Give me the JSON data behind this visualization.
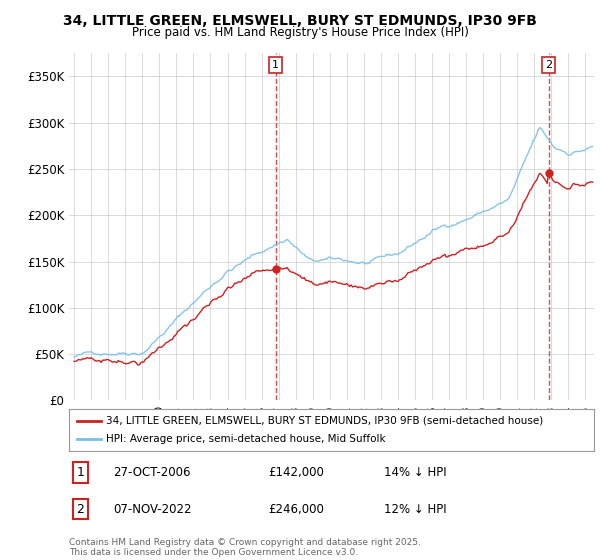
{
  "title1": "34, LITTLE GREEN, ELMSWELL, BURY ST EDMUNDS, IP30 9FB",
  "title2": "Price paid vs. HM Land Registry's House Price Index (HPI)",
  "ylabel_ticks": [
    "£0",
    "£50K",
    "£100K",
    "£150K",
    "£200K",
    "£250K",
    "£300K",
    "£350K"
  ],
  "ytick_vals": [
    0,
    50000,
    100000,
    150000,
    200000,
    250000,
    300000,
    350000
  ],
  "ylim": [
    0,
    375000
  ],
  "hpi_color": "#7bbfe8",
  "price_color": "#cc2222",
  "vline_color": "#cc2222",
  "marker1_year": 2006.82,
  "marker1_price": 142000,
  "marker2_year": 2022.85,
  "marker2_price": 246000,
  "legend_line1": "34, LITTLE GREEN, ELMSWELL, BURY ST EDMUNDS, IP30 9FB (semi-detached house)",
  "legend_line2": "HPI: Average price, semi-detached house, Mid Suffolk",
  "info1_label": "1",
  "info1_date": "27-OCT-2006",
  "info1_price": "£142,000",
  "info1_hpi": "14% ↓ HPI",
  "info2_label": "2",
  "info2_date": "07-NOV-2022",
  "info2_price": "£246,000",
  "info2_hpi": "12% ↓ HPI",
  "footer": "Contains HM Land Registry data © Crown copyright and database right 2025.\nThis data is licensed under the Open Government Licence v3.0.",
  "background_color": "#ffffff",
  "grid_color": "#cccccc",
  "xlim_left": 1994.7,
  "xlim_right": 2025.5
}
